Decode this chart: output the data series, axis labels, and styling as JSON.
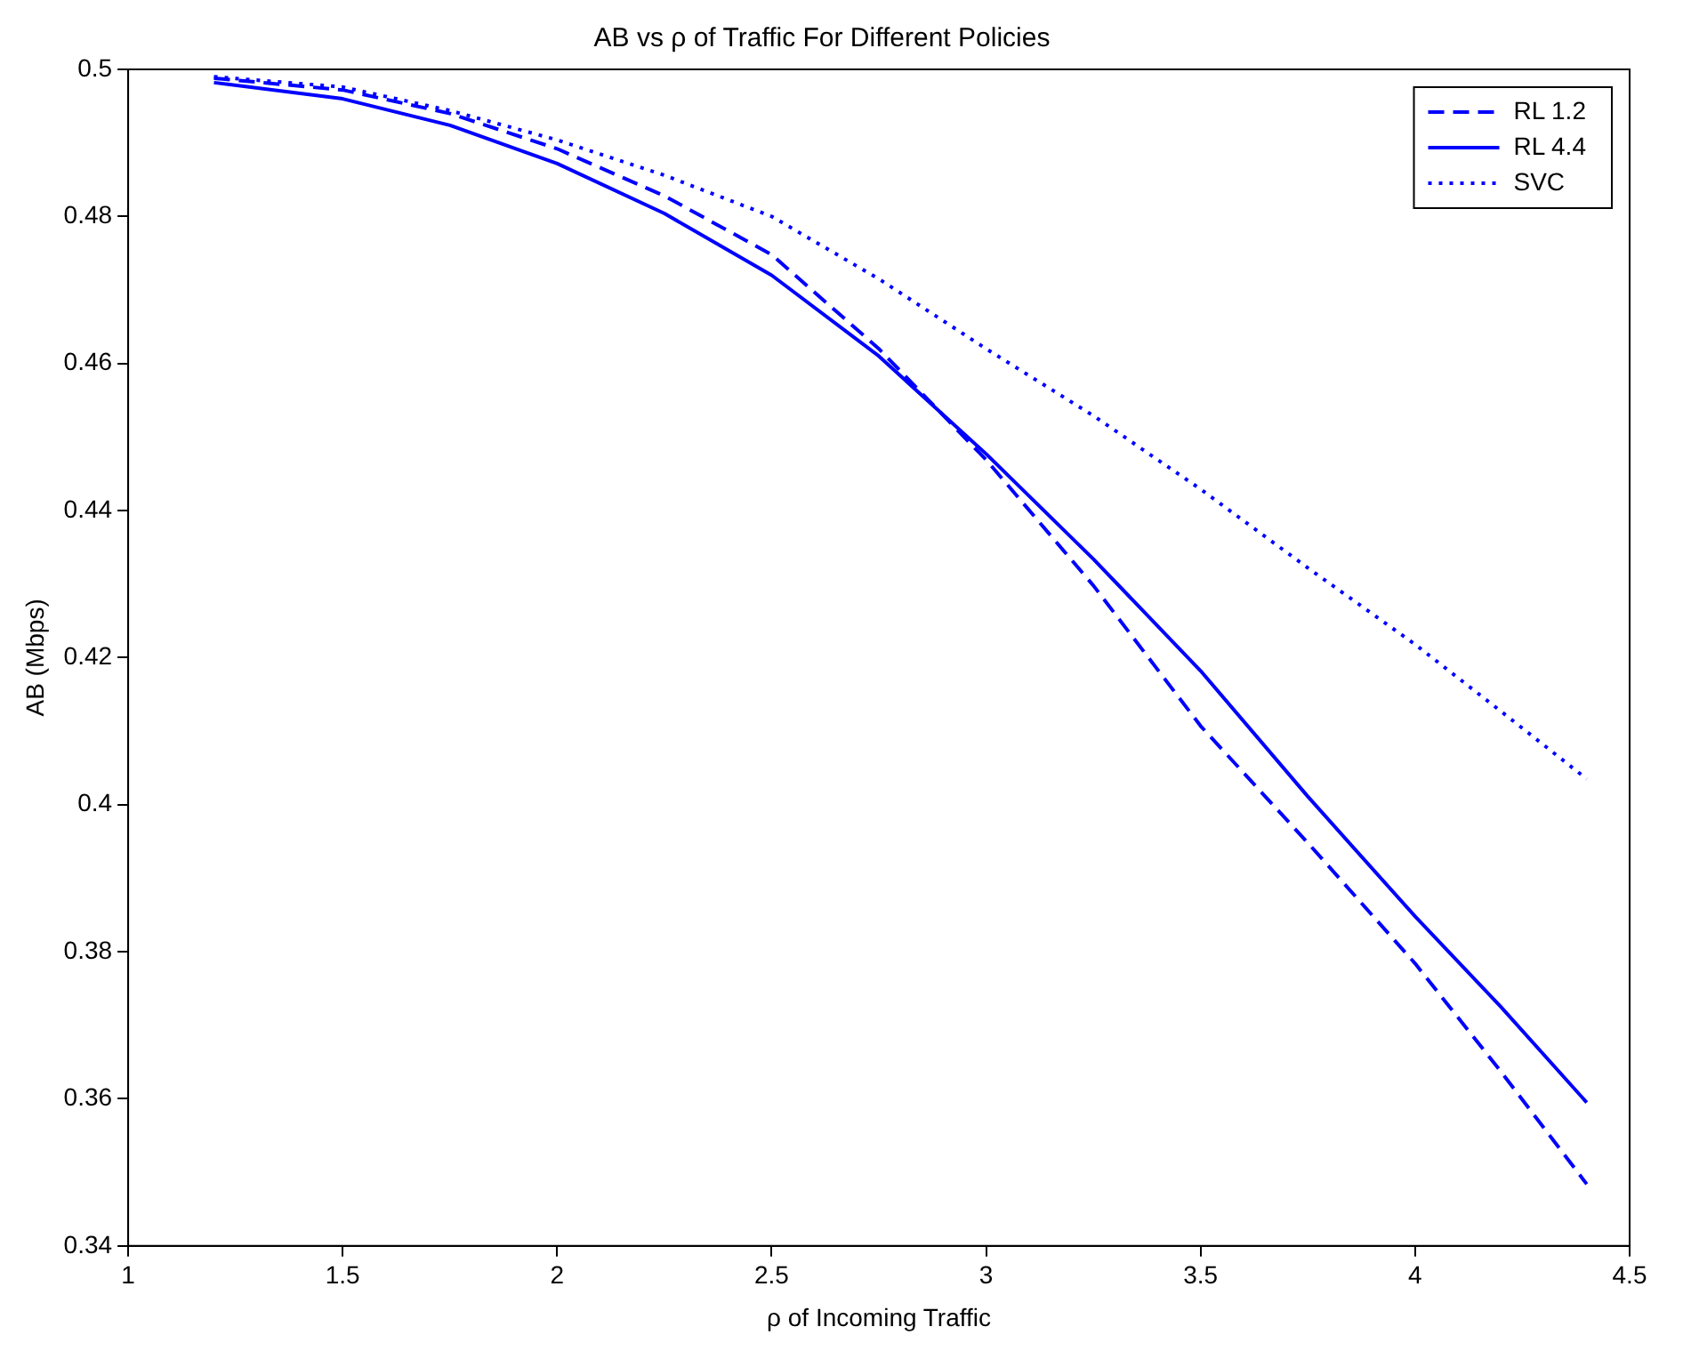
{
  "chart_data": {
    "type": "line",
    "title": "AB vs ρ of Traffic For Different Policies",
    "xlabel": "ρ of Incoming Traffic",
    "ylabel": "AB (Mbps)",
    "x": [
      1.2,
      1.5,
      1.75,
      2,
      2.25,
      2.5,
      2.75,
      3,
      3.25,
      3.5,
      3.75,
      4,
      4.2,
      4.4
    ],
    "series": [
      {
        "name": "RL 1.2",
        "color": "#0000ff",
        "line_style": "dashed",
        "values": [
          0.4988,
          0.4972,
          0.494,
          0.4892,
          0.4828,
          0.4748,
          0.462,
          0.4469,
          0.4298,
          0.4107,
          0.3948,
          0.3784,
          0.3637,
          0.3484
        ]
      },
      {
        "name": "RL 4.4",
        "color": "#0000ff",
        "line_style": "solid",
        "values": [
          0.4982,
          0.496,
          0.4924,
          0.4872,
          0.4804,
          0.472,
          0.461,
          0.4477,
          0.4334,
          0.4182,
          0.4011,
          0.3848,
          0.3725,
          0.3595
        ]
      },
      {
        "name": "SVC",
        "color": "#0000ff",
        "line_style": "dotted",
        "values": [
          0.499,
          0.4976,
          0.4944,
          0.4904,
          0.4856,
          0.48,
          0.4715,
          0.462,
          0.4529,
          0.4429,
          0.4322,
          0.4218,
          0.4127,
          0.4035
        ]
      }
    ],
    "xlim": [
      1,
      4.5
    ],
    "xticks": [
      1,
      1.5,
      2,
      2.5,
      3,
      3.5,
      4,
      4.5
    ],
    "ylim": [
      0.34,
      0.5
    ],
    "yticks": [
      0.34,
      0.36,
      0.38,
      0.4,
      0.42,
      0.44,
      0.46,
      0.48,
      0.5
    ],
    "grid": false,
    "legend": "top right",
    "marker": "none"
  }
}
